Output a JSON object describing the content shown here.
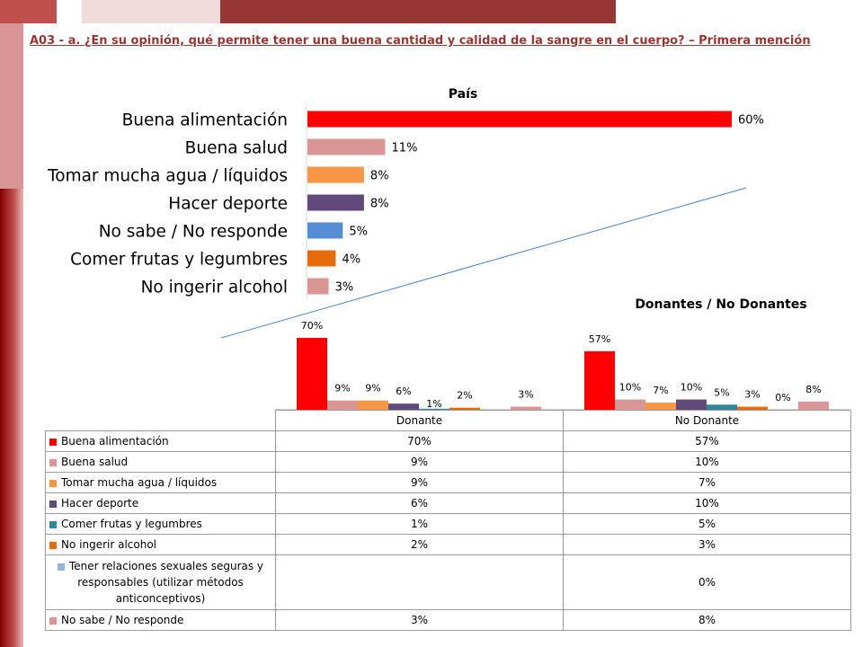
{
  "page": {
    "title": "A03 - a. ¿En su opinión, qué permite tener una buena cantidad y calidad de la sangre en el cuerpo? – Primera mención",
    "decor_colors": [
      "#c0504d",
      "#f2dcdb",
      "#953735",
      "#d99694",
      "#7f0000"
    ]
  },
  "chart_data": [
    {
      "type": "bar",
      "orientation": "horizontal",
      "title": "País",
      "categories": [
        "Buena alimentación",
        "Buena salud",
        "Tomar mucha agua / líquidos",
        "Hacer deporte",
        "No sabe / No responde",
        "Comer frutas y legumbres",
        "No ingerir alcohol"
      ],
      "values": [
        60,
        11,
        8,
        8,
        5,
        4,
        3
      ],
      "labels": [
        "60%",
        "11%",
        "8%",
        "8%",
        "5%",
        "4%",
        "3%"
      ],
      "colors": [
        "#ff0000",
        "#d99694",
        "#f79646",
        "#604a7b",
        "#558ed5",
        "#e46c0a",
        "#d99694"
      ],
      "xlim": [
        0,
        60
      ],
      "grid": false
    },
    {
      "type": "bar",
      "title": "Donantes / No Donantes",
      "categories": [
        "Donante",
        "No Donante"
      ],
      "series": [
        {
          "name": "Buena alimentación",
          "color": "#ff0000",
          "values": [
            70,
            57
          ],
          "labels": [
            "70%",
            "57%"
          ]
        },
        {
          "name": "Buena salud",
          "color": "#d99694",
          "values": [
            9,
            10
          ],
          "labels": [
            "9%",
            "10%"
          ]
        },
        {
          "name": "Tomar mucha agua / líquidos",
          "color": "#f79646",
          "values": [
            9,
            7
          ],
          "labels": [
            "9%",
            "7%"
          ]
        },
        {
          "name": "Hacer deporte",
          "color": "#604a7b",
          "values": [
            6,
            10
          ],
          "labels": [
            "6%",
            "10%"
          ]
        },
        {
          "name": "Comer frutas y legumbres",
          "color": "#31849b",
          "values": [
            1,
            5
          ],
          "labels": [
            "1%",
            "5%"
          ]
        },
        {
          "name": "No ingerir alcohol",
          "color": "#e46c0a",
          "values": [
            2,
            3
          ],
          "labels": [
            "2%",
            "3%"
          ]
        },
        {
          "name": "Tener relaciones sexuales seguras y responsables (utilizar métodos anticonceptivos)",
          "color": "#95b3d7",
          "values": [
            null,
            0
          ],
          "labels": [
            "",
            "0%"
          ]
        },
        {
          "name": "No sabe / No responde",
          "color": "#d99694",
          "values": [
            3,
            8
          ],
          "labels": [
            "3%",
            "8%"
          ]
        }
      ],
      "ylim": [
        0,
        70
      ],
      "legend": "data-table-below",
      "grid": false
    }
  ]
}
